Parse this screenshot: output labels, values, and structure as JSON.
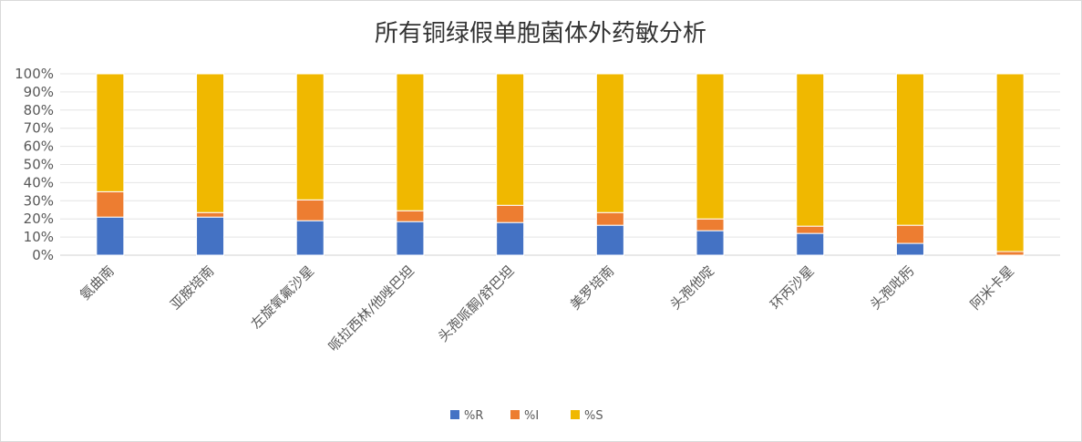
{
  "chart_data": {
    "type": "bar",
    "stacked": true,
    "percent_stacked": true,
    "title": "所有铜绿假单胞菌体外药敏分析",
    "categories": [
      "氨曲南",
      "亚胺培南",
      "左旋氧氟沙星",
      "哌拉西林/他唑巴坦",
      "头孢哌酮/舒巴坦",
      "美罗培南",
      "头孢他啶",
      "环丙沙星",
      "头孢吡肟",
      "阿米卡星"
    ],
    "series": [
      {
        "name": "%R",
        "color": "#4472c4",
        "values": [
          21,
          21,
          19,
          18.5,
          18,
          16.5,
          13.5,
          12,
          6.5,
          0
        ]
      },
      {
        "name": "%I",
        "color": "#ed7d31",
        "values": [
          14,
          2.5,
          11.5,
          6,
          9.5,
          7,
          6.5,
          4,
          10,
          2
        ]
      },
      {
        "name": "%S",
        "color": "#f0b800",
        "values": [
          65,
          76.5,
          69.5,
          75.5,
          72.5,
          76.5,
          80,
          84,
          83.5,
          98
        ]
      }
    ],
    "yticks": [
      "0%",
      "10%",
      "20%",
      "30%",
      "40%",
      "50%",
      "60%",
      "70%",
      "80%",
      "90%",
      "100%"
    ],
    "ylim": [
      0,
      100
    ],
    "grid": true,
    "legend_position": "bottom"
  }
}
